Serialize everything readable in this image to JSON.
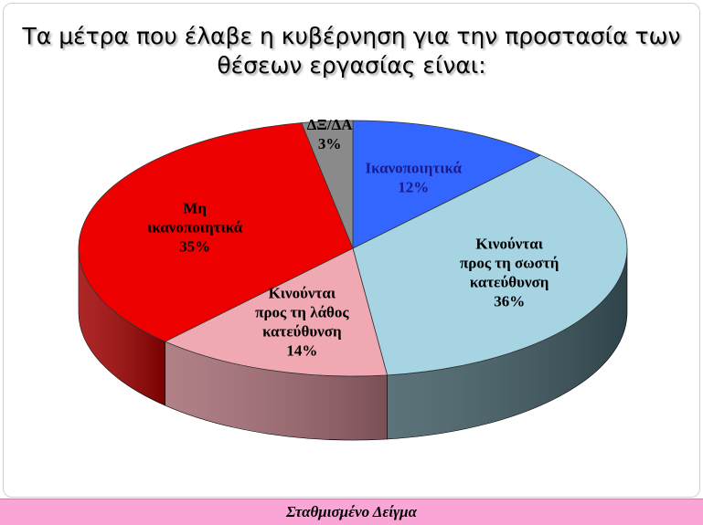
{
  "title": "Τα μέτρα που έλαβε η κυβέρνηση για την προστασία των θέσεων εργασίας είναι:",
  "footer": "Σταθμισμένο Δείγμα",
  "chart_data": {
    "type": "pie",
    "style": "3d",
    "slices": [
      {
        "label_lines": [
          "Ικανοποιητικά"
        ],
        "value": 12,
        "value_label": "12%",
        "color": "#3366ff",
        "side_color": "#1a3a99",
        "label_color": "#1a1a8c"
      },
      {
        "label_lines": [
          "Κινούνται",
          "προς τη σωστή",
          "κατεύθυνση"
        ],
        "value": 36,
        "value_label": "36%",
        "color": "#a6d4e2",
        "side_color": "#3e5a62",
        "label_color": "#000000"
      },
      {
        "label_lines": [
          "Κινούνται",
          "προς τη λάθος",
          "κατεύθυνση"
        ],
        "value": 14,
        "value_label": "14%",
        "color": "#f0a9b2",
        "side_color": "#a36a72",
        "label_color": "#000000"
      },
      {
        "label_lines": [
          "Μη",
          "ικανοποιητικά"
        ],
        "value": 35,
        "value_label": "35%",
        "color": "#ee0000",
        "side_color": "#a00000",
        "label_color": "#000000"
      },
      {
        "label_lines": [
          "ΔΞ/ΔΑ"
        ],
        "value": 3,
        "value_label": "3%",
        "color": "#8a8a8a",
        "side_color": "#555555",
        "label_color": "#000000"
      }
    ]
  }
}
